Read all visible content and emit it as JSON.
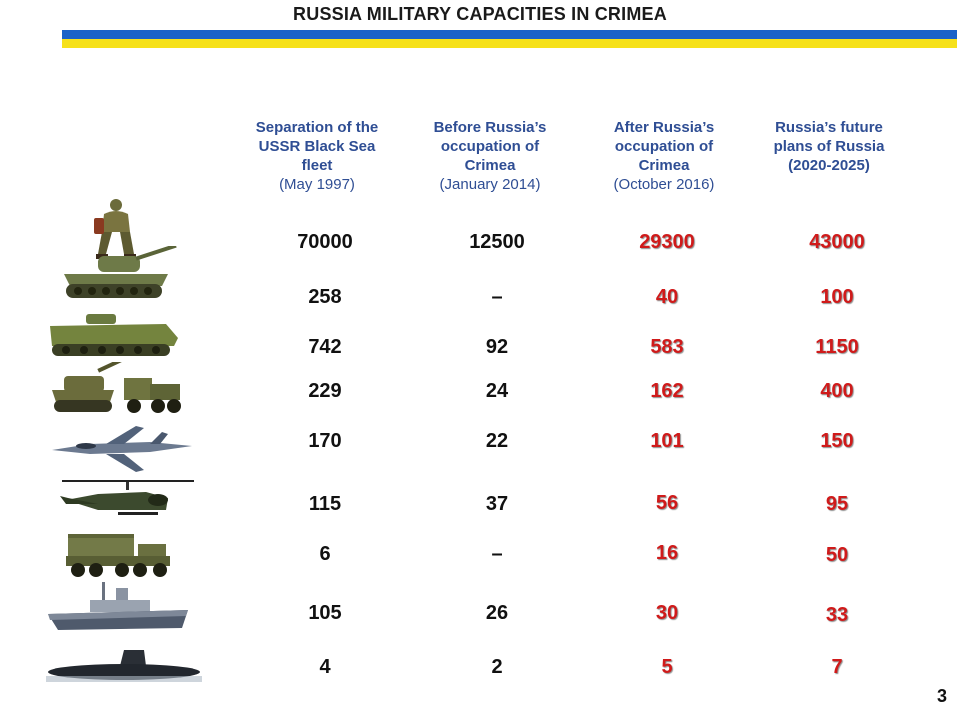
{
  "title": "RUSSIA MILITARY CAPACITIES IN CRIMEA",
  "columns": [
    {
      "heading": "Separation of the USSR Black Sea fleet",
      "sub": "(May 1997)"
    },
    {
      "heading": "Before Russia’s occupation of Crimea",
      "sub": "(January 2014)"
    },
    {
      "heading": "After Russia’s occupation of Crimea",
      "sub": "(October 2016)"
    },
    {
      "heading": "Russia’s future plans of Russia",
      "sub": "(2020-2025)"
    }
  ],
  "rows": [
    {
      "icon": "soldier-icon",
      "values": [
        "70000",
        "12500",
        "29300",
        "43000"
      ]
    },
    {
      "icon": "tank-icon",
      "values": [
        "258",
        "–",
        "40",
        "100"
      ]
    },
    {
      "icon": "armored-vehicle-icon",
      "values": [
        "742",
        "92",
        "583",
        "1150"
      ]
    },
    {
      "icon": "artillery-icon",
      "values": [
        "229",
        "24",
        "162",
        "400"
      ]
    },
    {
      "icon": "fighter-jet-icon",
      "values": [
        "170",
        "22",
        "101",
        "150"
      ]
    },
    {
      "icon": "helicopter-icon",
      "values": [
        "115",
        "37",
        "56",
        "95"
      ]
    },
    {
      "icon": "missile-launcher-icon",
      "values": [
        "6",
        "–",
        "16",
        "50"
      ]
    },
    {
      "icon": "warship-icon",
      "values": [
        "105",
        "26",
        "30",
        "33"
      ]
    },
    {
      "icon": "submarine-icon",
      "values": [
        "4",
        "2",
        "5",
        "7"
      ]
    }
  ],
  "page_number": "3",
  "colors": {
    "header_text": "#2f4e94",
    "highlight": "#d01a1a",
    "flag_blue": "#1b62c8",
    "flag_yellow": "#f6e11a"
  }
}
